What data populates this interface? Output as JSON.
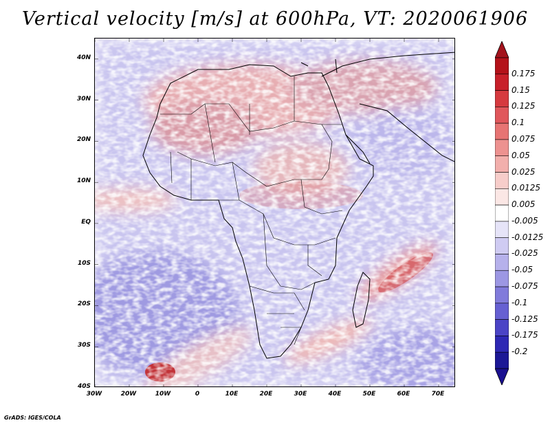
{
  "title": "Vertical velocity [m/s] at 600hPa, VT: 2020061906",
  "axes": {
    "lat_labels": [
      "40N",
      "30N",
      "20N",
      "10N",
      "EQ",
      "10S",
      "20S",
      "30S",
      "40S"
    ],
    "lat_values": [
      40,
      30,
      20,
      10,
      0,
      -10,
      -20,
      -30,
      -40
    ],
    "lon_labels": [
      "30W",
      "20W",
      "10W",
      "0",
      "10E",
      "20E",
      "30E",
      "40E",
      "50E",
      "60E",
      "70E"
    ],
    "lon_values": [
      -30,
      -20,
      -10,
      0,
      10,
      20,
      30,
      40,
      50,
      60,
      70
    ],
    "lat_range": [
      -40,
      45
    ],
    "lon_range": [
      -30,
      75
    ]
  },
  "colorbar": {
    "levels": [
      "0.175",
      "0.15",
      "0.125",
      "0.1",
      "0.075",
      "0.05",
      "0.025",
      "0.0125",
      "0.005",
      "-0.005",
      "-0.0125",
      "-0.025",
      "-0.05",
      "-0.075",
      "-0.1",
      "-0.125",
      "-0.175",
      "-0.2"
    ],
    "colors": [
      "#b4121a",
      "#c8202a",
      "#d63a3f",
      "#e0575b",
      "#e77473",
      "#ed9290",
      "#f2afac",
      "#f7cdca",
      "#fbe7e5",
      "#ffffff",
      "#e6e4f8",
      "#cfcbf2",
      "#b6b1eb",
      "#9c97e3",
      "#817bdb",
      "#6660d2",
      "#4b44c6",
      "#2e28b4",
      "#1c1896"
    ],
    "top_arrow_color": "#a3131c",
    "bottom_arrow_color": "#1a1090"
  },
  "credit": "GrADS: IGES/COLA"
}
